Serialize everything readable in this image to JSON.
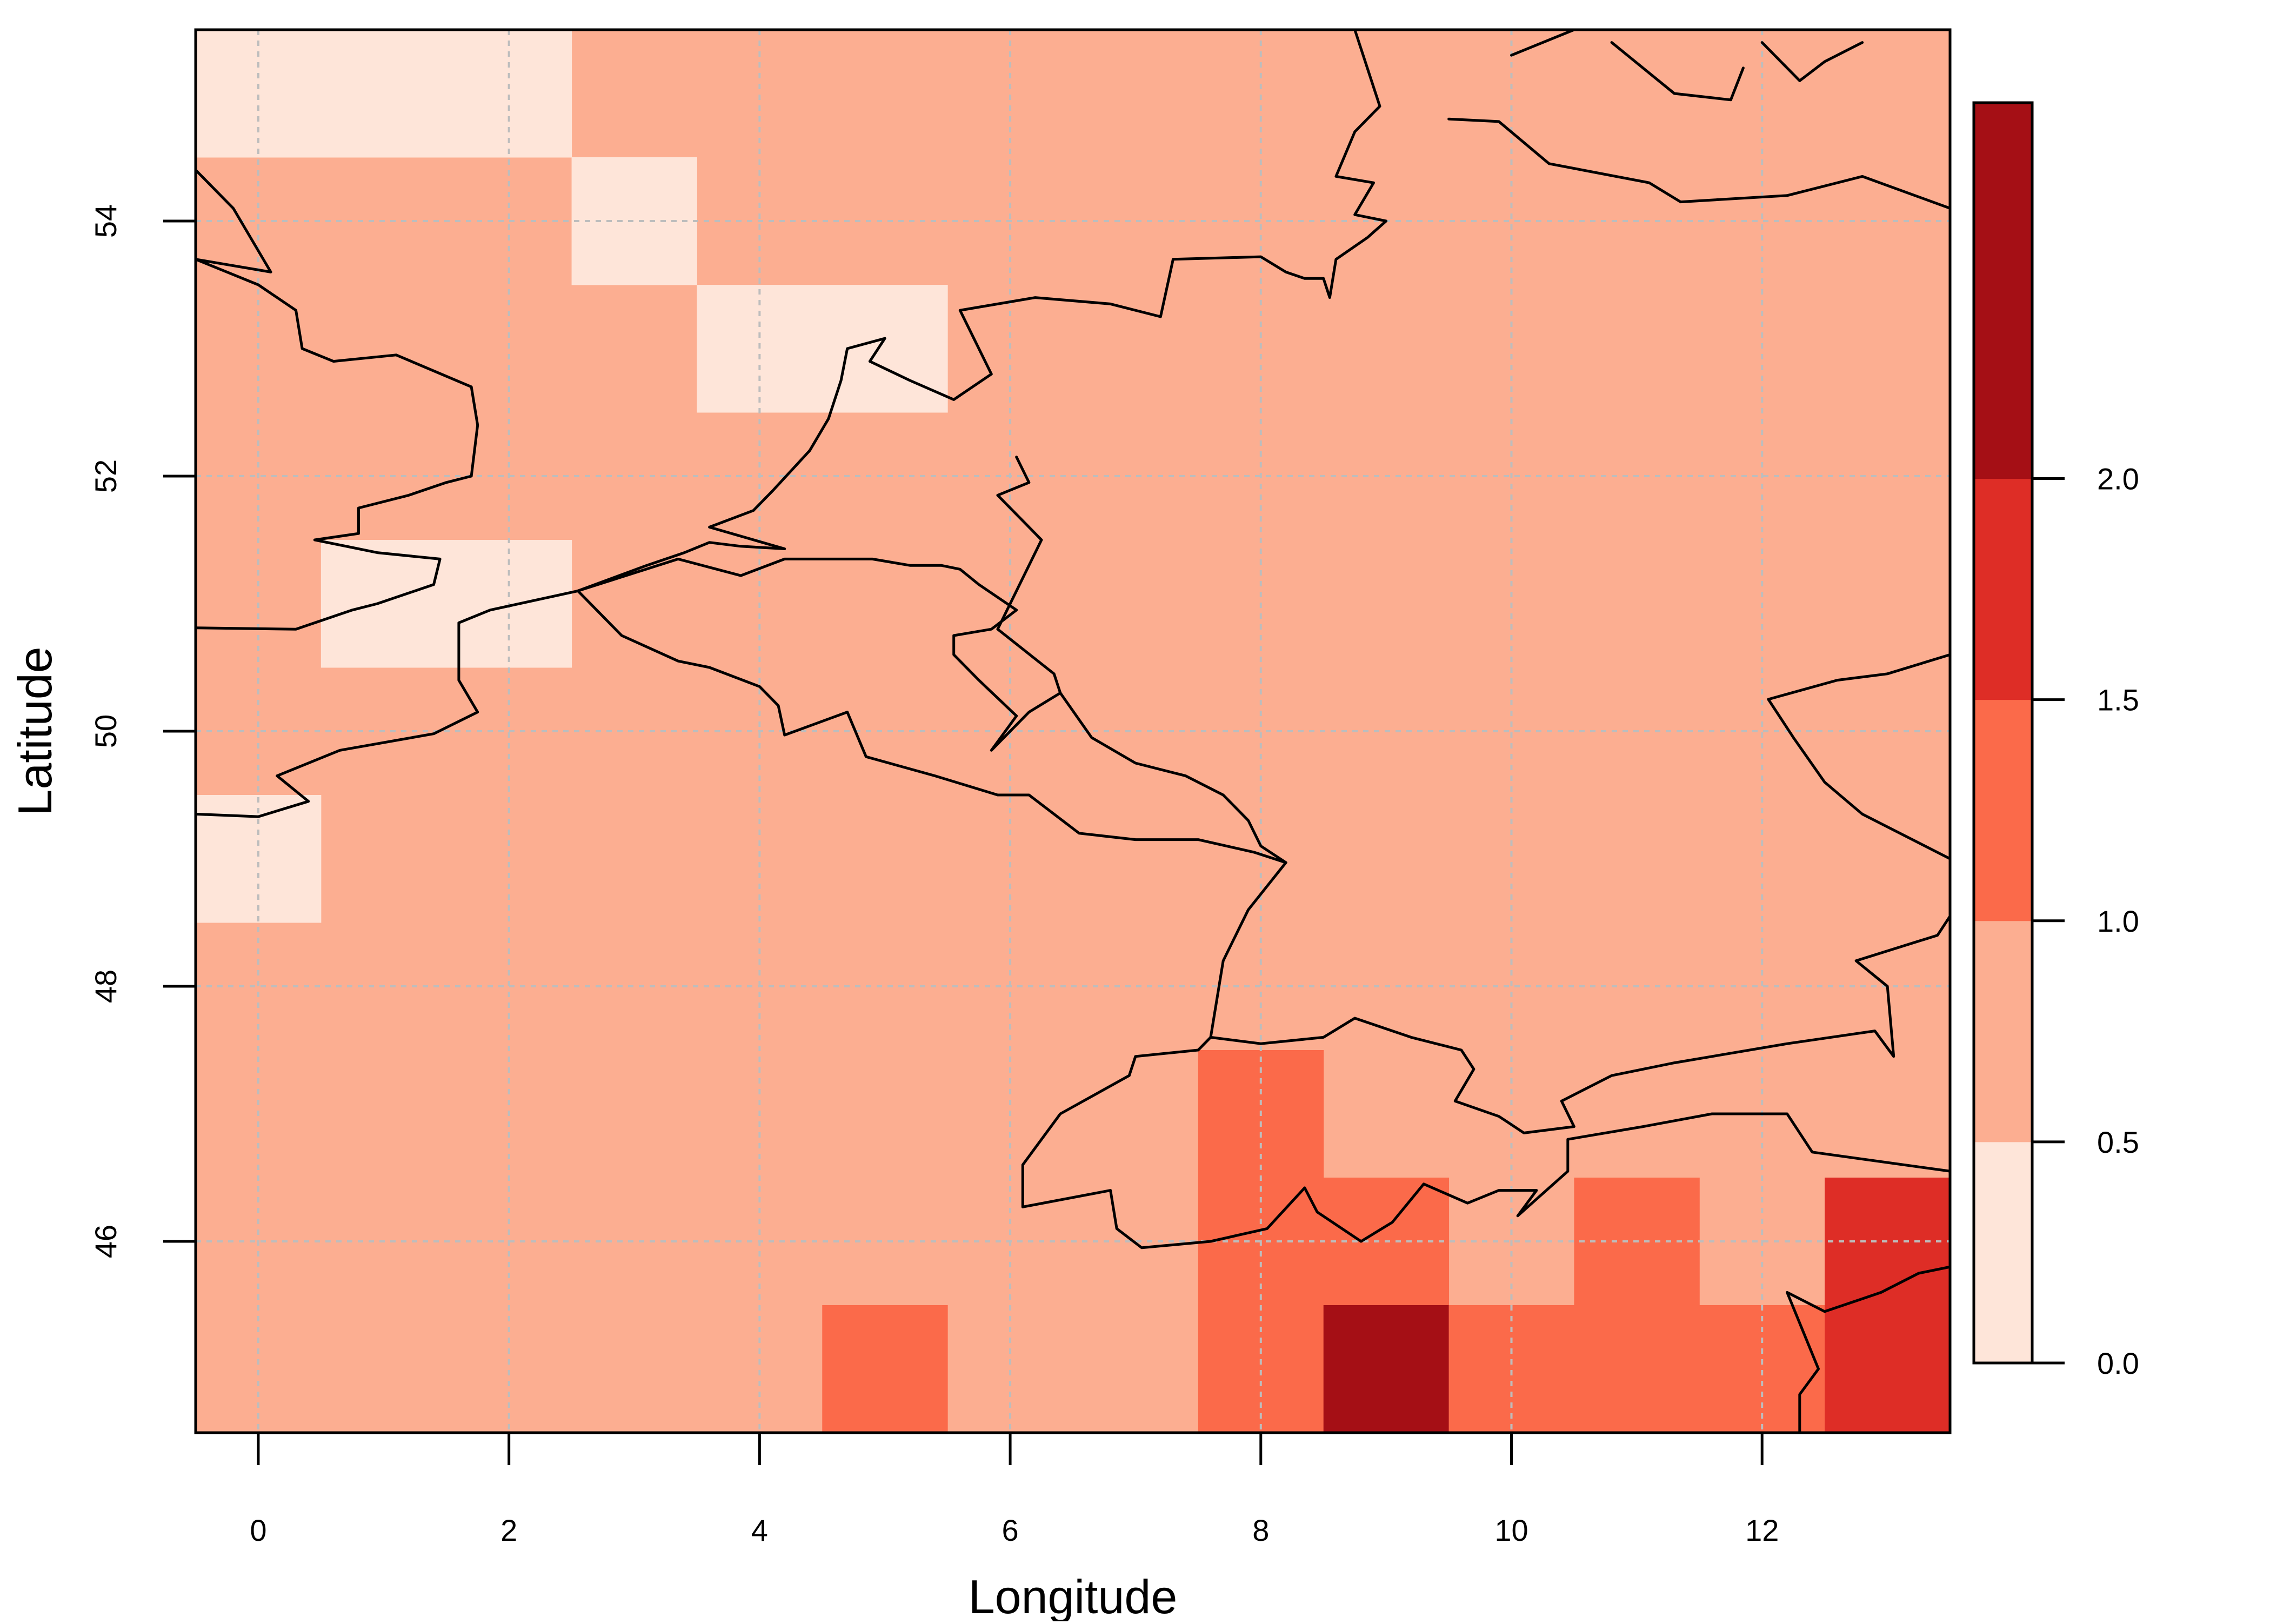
{
  "chart_data": {
    "type": "heatmap",
    "title": "",
    "xlabel": "Longitude",
    "ylabel": "Latitude",
    "xlim": [
      -0.5,
      13.5
    ],
    "ylim": [
      44.5,
      55.5
    ],
    "x_ticks": [
      0,
      2,
      4,
      6,
      8,
      10,
      12
    ],
    "y_ticks": [
      46,
      48,
      50,
      52,
      54
    ],
    "grid": true,
    "legend": "right colorbar",
    "colorbar": {
      "breaks": [
        0.0,
        0.5,
        1.0,
        1.5,
        2.0,
        2.85
      ],
      "tick_values": [
        0.0,
        0.5,
        1.0,
        1.5,
        2.0
      ],
      "tick_labels": [
        "0.0",
        "0.5",
        "1.0",
        "1.5",
        "2.0"
      ],
      "colors": [
        "#FEE5D9",
        "#FCAE91",
        "#FB6A4A",
        "#DE2D26",
        "#A50F15"
      ]
    },
    "cell_size_degrees": 1,
    "default_class": 1,
    "cells": [
      {
        "lon": 0,
        "lat": 55,
        "class": 0
      },
      {
        "lon": 1,
        "lat": 55,
        "class": 0
      },
      {
        "lon": 2,
        "lat": 55,
        "class": 0
      },
      {
        "lon": 3,
        "lat": 54,
        "class": 0
      },
      {
        "lon": 4,
        "lat": 53,
        "class": 0
      },
      {
        "lon": 5,
        "lat": 53,
        "class": 0
      },
      {
        "lon": 1,
        "lat": 51,
        "class": 0
      },
      {
        "lon": 2,
        "lat": 51,
        "class": 0
      },
      {
        "lon": 0,
        "lat": 49,
        "class": 0
      },
      {
        "lon": 8,
        "lat": 47,
        "class": 2
      },
      {
        "lon": 8,
        "lat": 46,
        "class": 2
      },
      {
        "lon": 9,
        "lat": 46,
        "class": 2
      },
      {
        "lon": 11,
        "lat": 46,
        "class": 2
      },
      {
        "lon": 13,
        "lat": 46,
        "class": 3
      },
      {
        "lon": 5,
        "lat": 45,
        "class": 2
      },
      {
        "lon": 8,
        "lat": 45,
        "class": 2
      },
      {
        "lon": 9,
        "lat": 45,
        "class": 4
      },
      {
        "lon": 10,
        "lat": 45,
        "class": 2
      },
      {
        "lon": 11,
        "lat": 45,
        "class": 2
      },
      {
        "lon": 12,
        "lat": 45,
        "class": 2
      },
      {
        "lon": 13,
        "lat": 45,
        "class": 3
      }
    ],
    "coastlines": [
      [
        [
          -0.5,
          54.4
        ],
        [
          -0.2,
          54.1
        ],
        [
          0.1,
          53.6
        ],
        [
          -0.5,
          53.7
        ],
        [
          0,
          53.5
        ],
        [
          0.3,
          53.3
        ],
        [
          0.35,
          53.0
        ],
        [
          0.6,
          52.9
        ],
        [
          1.1,
          52.95
        ],
        [
          1.7,
          52.7
        ],
        [
          1.75,
          52.4
        ],
        [
          1.7,
          52.0
        ],
        [
          1.5,
          51.95
        ],
        [
          1.2,
          51.85
        ],
        [
          0.8,
          51.75
        ],
        [
          0.8,
          51.55
        ],
        [
          0.45,
          51.5
        ],
        [
          0.95,
          51.4
        ],
        [
          1.45,
          51.35
        ],
        [
          1.4,
          51.15
        ],
        [
          0.95,
          51.0
        ],
        [
          0.75,
          50.95
        ],
        [
          0.3,
          50.8
        ],
        [
          -0.5,
          50.81
        ]
      ],
      [
        [
          -0.5,
          49.35
        ],
        [
          0,
          49.33
        ],
        [
          0.4,
          49.45
        ],
        [
          0.15,
          49.65
        ],
        [
          0.65,
          49.85
        ],
        [
          1.4,
          49.98
        ],
        [
          1.75,
          50.15
        ],
        [
          1.6,
          50.4
        ],
        [
          1.6,
          50.85
        ],
        [
          1.85,
          50.95
        ],
        [
          2.55,
          51.1
        ],
        [
          3.1,
          51.3
        ],
        [
          3.4,
          51.4
        ],
        [
          3.6,
          51.48
        ],
        [
          3.85,
          51.45
        ],
        [
          4.2,
          51.43
        ],
        [
          3.6,
          51.6
        ],
        [
          3.95,
          51.73
        ],
        [
          4.1,
          51.88
        ],
        [
          4.4,
          52.2
        ],
        [
          4.55,
          52.45
        ],
        [
          4.65,
          52.75
        ],
        [
          4.7,
          53.0
        ],
        [
          5.0,
          53.08
        ],
        [
          4.88,
          52.9
        ],
        [
          5.2,
          52.75
        ],
        [
          5.55,
          52.6
        ],
        [
          5.85,
          52.8
        ],
        [
          5.6,
          53.3
        ],
        [
          6.2,
          53.4
        ],
        [
          6.8,
          53.35
        ],
        [
          7.2,
          53.25
        ],
        [
          7.3,
          53.7
        ],
        [
          8.0,
          53.72
        ],
        [
          8.2,
          53.6
        ],
        [
          8.35,
          53.55
        ],
        [
          8.5,
          53.55
        ],
        [
          8.55,
          53.4
        ],
        [
          8.6,
          53.7
        ],
        [
          8.85,
          53.87
        ],
        [
          9.0,
          54.0
        ],
        [
          8.75,
          54.05
        ],
        [
          8.9,
          54.3
        ],
        [
          8.6,
          54.35
        ],
        [
          8.75,
          54.7
        ],
        [
          8.95,
          54.9
        ],
        [
          8.75,
          55.5
        ]
      ],
      [
        [
          6.05,
          52.15
        ],
        [
          6.15,
          51.95
        ],
        [
          5.9,
          51.85
        ],
        [
          6.25,
          51.5
        ],
        [
          6.05,
          51.1
        ],
        [
          5.9,
          50.8
        ],
        [
          6.35,
          50.45
        ],
        [
          6.4,
          50.3
        ],
        [
          6.15,
          50.15
        ],
        [
          5.85,
          49.85
        ],
        [
          6.05,
          50.12
        ],
        [
          5.75,
          50.4
        ],
        [
          5.55,
          50.6
        ],
        [
          5.55,
          50.75
        ],
        [
          5.85,
          50.8
        ],
        [
          6.05,
          50.95
        ],
        [
          5.75,
          51.15
        ],
        [
          5.6,
          51.27
        ],
        [
          5.45,
          51.3
        ],
        [
          5.2,
          51.3
        ],
        [
          4.9,
          51.35
        ],
        [
          4.2,
          51.35
        ],
        [
          3.85,
          51.22
        ],
        [
          3.35,
          51.35
        ],
        [
          2.55,
          51.1
        ]
      ],
      [
        [
          2.55,
          51.1
        ],
        [
          2.9,
          50.75
        ],
        [
          3.35,
          50.55
        ],
        [
          3.6,
          50.5
        ],
        [
          4.0,
          50.35
        ],
        [
          4.15,
          50.2
        ],
        [
          4.2,
          49.97
        ],
        [
          4.7,
          50.15
        ],
        [
          4.85,
          49.8
        ],
        [
          5.4,
          49.65
        ],
        [
          5.9,
          49.5
        ],
        [
          6.15,
          49.5
        ],
        [
          6.55,
          49.2
        ],
        [
          7.0,
          49.15
        ],
        [
          7.5,
          49.15
        ],
        [
          7.95,
          49.05
        ],
        [
          8.2,
          48.97
        ],
        [
          7.9,
          48.6
        ],
        [
          7.7,
          48.2
        ],
        [
          7.6,
          47.6
        ],
        [
          7.5,
          47.5
        ],
        [
          7.0,
          47.45
        ],
        [
          6.95,
          47.3
        ],
        [
          6.4,
          47.0
        ],
        [
          6.1,
          46.6
        ],
        [
          6.1,
          46.27
        ],
        [
          6.8,
          46.4
        ],
        [
          6.85,
          46.1
        ],
        [
          7.05,
          45.95
        ],
        [
          7.6,
          46.0
        ],
        [
          8.05,
          46.1
        ],
        [
          8.35,
          46.42
        ],
        [
          8.45,
          46.23
        ],
        [
          8.8,
          46.0
        ],
        [
          9.05,
          46.15
        ],
        [
          9.3,
          46.45
        ],
        [
          9.65,
          46.3
        ],
        [
          9.9,
          46.4
        ],
        [
          10.2,
          46.4
        ],
        [
          10.05,
          46.2
        ],
        [
          10.45,
          46.55
        ],
        [
          10.45,
          46.8
        ],
        [
          11.05,
          46.9
        ],
        [
          11.6,
          47.0
        ],
        [
          12.2,
          47.0
        ],
        [
          12.4,
          46.7
        ],
        [
          13.5,
          46.55
        ]
      ],
      [
        [
          12.5,
          45.45
        ],
        [
          12.2,
          45.6
        ],
        [
          12.45,
          45.0
        ],
        [
          12.3,
          44.8
        ],
        [
          12.3,
          44.5
        ]
      ],
      [
        [
          12.5,
          45.45
        ],
        [
          12.95,
          45.6
        ],
        [
          13.25,
          45.75
        ],
        [
          13.5,
          45.8
        ]
      ],
      [
        [
          7.6,
          47.6
        ],
        [
          8.0,
          47.55
        ],
        [
          8.5,
          47.6
        ],
        [
          8.75,
          47.75
        ],
        [
          9.2,
          47.6
        ],
        [
          9.6,
          47.5
        ],
        [
          9.7,
          47.35
        ],
        [
          9.55,
          47.1
        ],
        [
          9.9,
          46.98
        ],
        [
          10.1,
          46.85
        ],
        [
          10.5,
          46.9
        ],
        [
          10.4,
          47.1
        ],
        [
          10.8,
          47.3
        ],
        [
          11.3,
          47.4
        ],
        [
          12.2,
          47.55
        ],
        [
          12.9,
          47.65
        ],
        [
          13.05,
          47.45
        ],
        [
          13.0,
          48.0
        ],
        [
          12.75,
          48.2
        ],
        [
          13.4,
          48.4
        ],
        [
          13.5,
          48.55
        ]
      ],
      [
        [
          8.2,
          48.97
        ],
        [
          8.0,
          49.1
        ],
        [
          7.9,
          49.3
        ],
        [
          7.7,
          49.5
        ],
        [
          7.4,
          49.65
        ],
        [
          7.0,
          49.75
        ],
        [
          6.65,
          49.95
        ],
        [
          6.4,
          50.3
        ]
      ],
      [
        [
          13.5,
          49.0
        ],
        [
          12.8,
          49.35
        ],
        [
          12.5,
          49.6
        ],
        [
          12.25,
          49.95
        ],
        [
          12.05,
          50.25
        ],
        [
          12.6,
          50.4
        ],
        [
          13.0,
          50.45
        ],
        [
          13.5,
          50.6
        ]
      ],
      [
        [
          9.5,
          54.8
        ],
        [
          9.9,
          54.78
        ],
        [
          10.3,
          54.45
        ],
        [
          11.1,
          54.3
        ],
        [
          11.35,
          54.15
        ],
        [
          12.2,
          54.2
        ],
        [
          12.8,
          54.35
        ],
        [
          13.5,
          54.1
        ]
      ],
      [
        [
          10.0,
          55.3
        ],
        [
          10.5,
          55.5
        ]
      ],
      [
        [
          12.0,
          55.4
        ],
        [
          12.3,
          55.1
        ],
        [
          12.5,
          55.25
        ],
        [
          12.8,
          55.4
        ]
      ],
      [
        [
          10.8,
          55.4
        ],
        [
          11.3,
          55.0
        ],
        [
          11.75,
          54.95
        ],
        [
          11.85,
          55.2
        ]
      ]
    ]
  }
}
